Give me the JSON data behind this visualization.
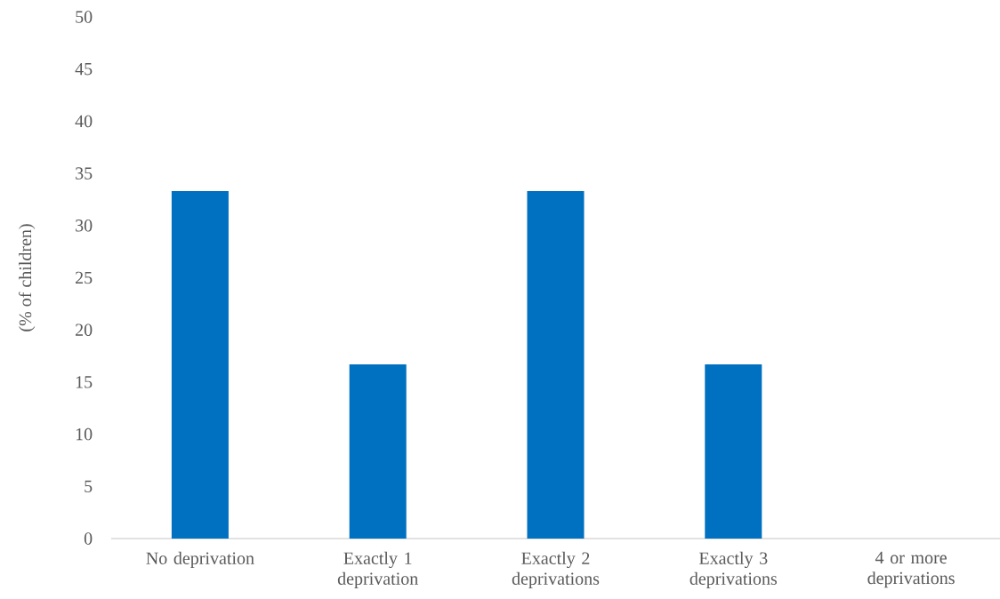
{
  "chart_data": {
    "type": "bar",
    "ylabel": "(% of children)",
    "categories": [
      "No deprivation",
      "Exactly 1 deprivation",
      "Exactly 2 deprivations",
      "Exactly 3 deprivations",
      "4 or more deprivations"
    ],
    "values": [
      33.3,
      16.7,
      33.3,
      16.7,
      0
    ],
    "color": "#0070c0",
    "ylim": [
      0,
      50
    ],
    "yticks": [
      0,
      5,
      10,
      15,
      20,
      25,
      30,
      35,
      40,
      45,
      50
    ]
  }
}
